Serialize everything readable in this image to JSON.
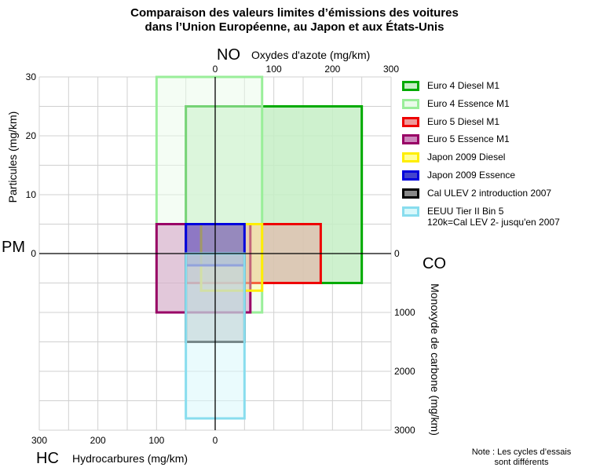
{
  "title_lines": [
    "Comparaison des valeurs limites d’émissions des voitures",
    "dans l’Union Européenne, au Japon et aux États-Unis"
  ],
  "note_lines": [
    "Note : Les cycles d’essais",
    "sont différents"
  ],
  "chart_data": {
    "type": "radial-quadrant",
    "axes": {
      "NO": {
        "symbol": "NO",
        "label": "Oxydes d'azote (mg/km)",
        "direction": "right",
        "range": [
          0,
          300
        ],
        "ticks": [
          "0",
          "100",
          "200",
          "300"
        ]
      },
      "HC": {
        "symbol": "HC",
        "label": "Hydrocarbures (mg/km)",
        "direction": "left",
        "range": [
          0,
          300
        ],
        "ticks": [
          "300",
          "200",
          "100",
          "0"
        ]
      },
      "PM": {
        "symbol": "PM",
        "label": "Particules (mg/km)",
        "direction": "up",
        "range": [
          0,
          30
        ],
        "ticks": [
          "30",
          "20",
          "10",
          "0"
        ]
      },
      "CO": {
        "symbol": "CO",
        "label": "Monoxyde de carbone (mg/km)",
        "direction": "down",
        "range": [
          0,
          3000
        ],
        "ticks": [
          "0",
          "1000",
          "2000",
          "3000"
        ]
      }
    },
    "grid": true,
    "legend_position": "right",
    "series": [
      {
        "name": "Euro 4 Diesel M1",
        "NO": 250,
        "HC": 50,
        "PM": 25,
        "CO": 500,
        "color": "#00aa00",
        "fill": "#c6eec6",
        "fill_opacity": 0.85
      },
      {
        "name": "Euro 4 Essence M1",
        "NO": 80,
        "HC": 100,
        "PM": 30,
        "CO": 1000,
        "color": "#99ee99",
        "fill": "#e9fbe9",
        "fill_opacity": 0.5
      },
      {
        "name": "Euro 5 Diesel M1",
        "NO": 180,
        "HC": 50,
        "PM": 5,
        "CO": 500,
        "color": "#ee0000",
        "fill": "#ee9999",
        "fill_opacity": 0.45
      },
      {
        "name": "Euro 5 Essence M1",
        "NO": 60,
        "HC": 100,
        "PM": 5,
        "CO": 1000,
        "color": "#990066",
        "fill": "#cc88bb",
        "fill_opacity": 0.45
      },
      {
        "name": "Japon 2009 Diesel",
        "NO": 80,
        "HC": 24,
        "PM": 5,
        "CO": 630,
        "color": "#ffee00",
        "fill": "#ffff99",
        "fill_opacity": 0.4
      },
      {
        "name": "Japon 2009 Essence",
        "NO": 50,
        "HC": 50,
        "PM": 5,
        "CO": 200,
        "color": "#0000dd",
        "fill": "#4444cc",
        "fill_opacity": 0.5
      },
      {
        "name": "Cal ULEV 2 introduction 2007",
        "NO": 50,
        "HC": 50,
        "PM": 0,
        "CO": 1500,
        "color": "#000000",
        "fill": "#888888",
        "fill_opacity": 0.45
      },
      {
        "name": "EEUU Tier II Bin 5\n120k=Cal LEV 2- jusqu'en 2007",
        "NO": 50,
        "HC": 50,
        "PM": 0,
        "CO": 2800,
        "color": "#88ddee",
        "fill": "#d8f8fb",
        "fill_opacity": 0.55
      }
    ]
  }
}
